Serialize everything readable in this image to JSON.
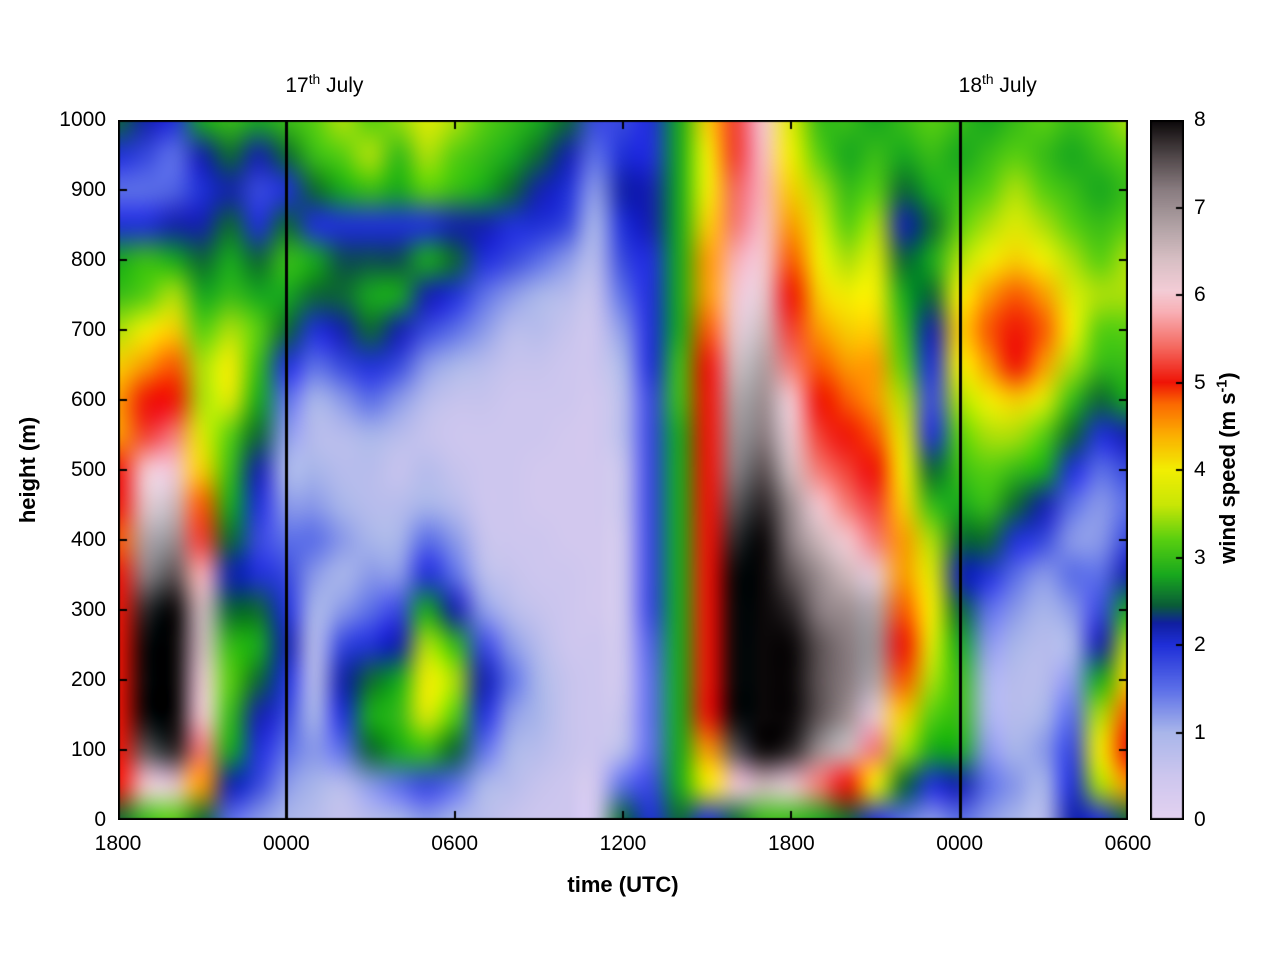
{
  "chart_data": {
    "type": "heatmap",
    "title": "",
    "xlabel": "time (UTC)",
    "ylabel": "height (m)",
    "x_range_hours": [
      0,
      36
    ],
    "y_range": [
      0,
      1000
    ],
    "c_range": [
      0,
      8
    ],
    "grid": false,
    "x_ticks": [
      {
        "label": "1800",
        "hour": 0
      },
      {
        "label": "0000",
        "hour": 6
      },
      {
        "label": "0600",
        "hour": 12
      },
      {
        "label": "1200",
        "hour": 18
      },
      {
        "label": "1800",
        "hour": 24
      },
      {
        "label": "0000",
        "hour": 30
      },
      {
        "label": "0600",
        "hour": 36
      }
    ],
    "y_ticks": [
      {
        "label": "0",
        "value": 0
      },
      {
        "label": "100",
        "value": 100
      },
      {
        "label": "200",
        "value": 200
      },
      {
        "label": "300",
        "value": 300
      },
      {
        "label": "400",
        "value": 400
      },
      {
        "label": "500",
        "value": 500
      },
      {
        "label": "600",
        "value": 600
      },
      {
        "label": "700",
        "value": 700
      },
      {
        "label": "800",
        "value": 800
      },
      {
        "label": "900",
        "value": 900
      },
      {
        "label": "1000",
        "value": 1000
      }
    ],
    "colorbar": {
      "label_pre": "wind speed (m s",
      "label_sup": "-1",
      "label_post": ")",
      "ticks": [
        {
          "label": "0",
          "value": 0
        },
        {
          "label": "1",
          "value": 1
        },
        {
          "label": "2",
          "value": 2
        },
        {
          "label": "3",
          "value": 3
        },
        {
          "label": "4",
          "value": 4
        },
        {
          "label": "5",
          "value": 5
        },
        {
          "label": "6",
          "value": 6
        },
        {
          "label": "7",
          "value": 7
        },
        {
          "label": "8",
          "value": 8
        }
      ],
      "position": "right"
    },
    "annotations": [
      {
        "day": "17",
        "ordinal": "th",
        "rest": " July",
        "hour": 6
      },
      {
        "day": "18",
        "ordinal": "th",
        "rest": " July",
        "hour": 30
      }
    ],
    "vlines_hours": [
      6,
      30
    ],
    "time_hours": [
      0,
      1,
      2,
      3,
      4,
      5,
      6,
      7,
      8,
      9,
      10,
      11,
      12,
      13,
      14,
      15,
      16,
      17,
      18,
      19,
      20,
      21,
      22,
      23,
      24,
      25,
      26,
      27,
      28,
      29,
      30,
      31,
      32,
      33,
      34,
      35,
      36
    ],
    "heights_m": [
      0,
      50,
      100,
      150,
      200,
      250,
      300,
      350,
      400,
      450,
      500,
      550,
      600,
      650,
      700,
      750,
      800,
      850,
      900,
      950,
      1000
    ],
    "values_units": "m s^-1",
    "values_columns": [
      [
        2.5,
        5,
        5,
        5,
        5,
        5,
        5,
        5,
        4.8,
        5,
        5,
        4.5,
        4.5,
        4.2,
        3.5,
        3,
        2.8,
        2,
        1.5,
        2,
        2.5
      ],
      [
        3,
        6,
        7.5,
        8,
        8,
        8,
        7.8,
        7.2,
        6.8,
        6.3,
        6,
        5.2,
        5,
        4.5,
        4,
        3.2,
        3,
        2,
        1.5,
        1.8,
        2.2
      ],
      [
        3.2,
        6.2,
        7.8,
        8,
        8,
        8,
        8,
        7.5,
        7,
        6.5,
        6,
        5.5,
        5,
        4.8,
        4.2,
        3.5,
        2.8,
        2.2,
        1.6,
        1.5,
        2
      ],
      [
        2.5,
        4.5,
        5.5,
        6,
        6.2,
        6.5,
        6.5,
        5.8,
        5.2,
        4.8,
        4.2,
        3.8,
        3.5,
        3.5,
        3.2,
        2.8,
        2.5,
        2.2,
        2,
        2.2,
        2.8
      ],
      [
        1.5,
        2.2,
        2.8,
        3,
        3.2,
        3,
        2.5,
        2.2,
        2.5,
        2.8,
        3,
        3.2,
        3.8,
        4,
        3.5,
        3,
        2.8,
        2.5,
        2.2,
        2.5,
        3
      ],
      [
        1.2,
        1.8,
        2,
        2.2,
        2.5,
        2.8,
        2.5,
        2,
        1.8,
        2,
        2.2,
        2.5,
        2.8,
        3,
        3.2,
        2.8,
        2.5,
        2,
        1.8,
        2.2,
        2.8
      ],
      [
        1,
        1.2,
        1.5,
        1.8,
        2,
        2.2,
        2,
        1.8,
        1.5,
        1.2,
        1,
        1.2,
        1.5,
        2,
        2.5,
        2.8,
        3,
        2.5,
        2,
        2.5,
        3
      ],
      [
        0.8,
        1,
        1.2,
        1,
        0.8,
        0.8,
        1,
        1.2,
        1.5,
        1.2,
        1,
        0.8,
        1,
        1.5,
        2,
        2.5,
        2.8,
        2,
        2.5,
        3,
        3.2
      ],
      [
        0.6,
        0.8,
        1.5,
        2,
        2.2,
        1.8,
        1.2,
        1,
        1.2,
        1,
        0.8,
        0.8,
        1.2,
        1.8,
        2.2,
        2.5,
        2.4,
        2,
        2.8,
        3.2,
        3.5
      ],
      [
        0.8,
        1.2,
        2.5,
        2.8,
        2.5,
        2,
        1.5,
        1.2,
        1,
        0.8,
        0.8,
        1,
        1.5,
        2,
        2.5,
        2.8,
        2.4,
        2,
        3,
        3.5,
        3.2
      ],
      [
        1,
        1.5,
        2.8,
        3,
        2.8,
        2.2,
        1.8,
        1.2,
        1,
        0.8,
        0.6,
        0.8,
        1.2,
        1.8,
        2.2,
        2.8,
        2.4,
        2,
        2.8,
        3,
        3.4
      ],
      [
        1.2,
        1.8,
        3,
        3.8,
        4,
        3.5,
        2.8,
        2,
        1.5,
        1,
        0.8,
        0.6,
        0.8,
        1.2,
        1.8,
        2.2,
        2.8,
        2,
        3.2,
        3.5,
        3.8
      ],
      [
        1,
        1.5,
        2.5,
        3.2,
        3.5,
        3,
        2.2,
        1.5,
        1.2,
        0.8,
        0.6,
        0.5,
        0.6,
        1,
        1.5,
        2,
        2.5,
        2.2,
        3,
        3.2,
        3.5
      ],
      [
        0.8,
        1,
        1.5,
        2,
        2.2,
        1.8,
        1.2,
        0.8,
        0.6,
        0.5,
        0.5,
        0.5,
        0.6,
        0.8,
        1.2,
        1.5,
        2,
        2.2,
        2.8,
        3,
        3.2
      ],
      [
        0.6,
        0.8,
        1,
        1.2,
        1.5,
        1.2,
        0.8,
        0.6,
        0.5,
        0.5,
        0.5,
        0.5,
        0.5,
        0.6,
        0.8,
        1.2,
        1.8,
        2,
        2.5,
        2.8,
        3
      ],
      [
        0.5,
        0.6,
        0.8,
        1,
        1,
        0.8,
        0.6,
        0.5,
        0.5,
        0.4,
        0.4,
        0.5,
        0.5,
        0.6,
        0.8,
        1,
        1.5,
        2,
        2.2,
        2.5,
        2.8
      ],
      [
        0.5,
        0.5,
        0.6,
        0.6,
        0.6,
        0.5,
        0.5,
        0.5,
        0.4,
        0.4,
        0.4,
        0.4,
        0.5,
        0.5,
        0.6,
        0.8,
        1.2,
        1.8,
        2,
        2.2,
        2.5
      ],
      [
        0.4,
        0.4,
        0.5,
        0.5,
        0.5,
        0.5,
        0.4,
        0.4,
        0.4,
        0.4,
        0.4,
        0.4,
        0.4,
        0.5,
        0.5,
        0.6,
        0.8,
        1,
        1.2,
        1.5,
        1.8
      ],
      [
        2.5,
        1.5,
        0.8,
        0.6,
        0.5,
        0.5,
        0.5,
        0.5,
        0.5,
        0.6,
        0.6,
        0.8,
        0.8,
        1,
        1.2,
        1.5,
        1.8,
        2,
        2.2,
        2,
        1.8
      ],
      [
        2,
        1.8,
        1.5,
        1.5,
        1.5,
        1.6,
        1.8,
        1.8,
        1.8,
        1.8,
        1.8,
        1.8,
        1.8,
        2,
        2,
        2,
        2,
        2.2,
        2.2,
        2,
        2
      ],
      [
        2.5,
        2.8,
        2.8,
        2.8,
        2.8,
        2.8,
        2.8,
        2.8,
        2.8,
        2.8,
        2.8,
        2.8,
        3,
        3,
        2.8,
        2.8,
        2.8,
        2.8,
        2.8,
        2.8,
        2.8
      ],
      [
        2,
        4,
        4.5,
        5,
        5,
        5,
        5,
        5,
        5,
        5,
        5,
        5,
        5,
        5,
        4.8,
        4.5,
        4.5,
        4.2,
        4,
        4,
        4.2
      ],
      [
        2.5,
        6,
        7.5,
        8,
        8,
        8,
        8,
        8,
        7.8,
        7.5,
        7.2,
        7,
        6.8,
        6.5,
        6.2,
        6,
        5.8,
        5.5,
        5.4,
        5.2,
        5.2
      ],
      [
        3,
        6.5,
        8,
        8,
        8,
        8,
        8,
        8,
        8,
        7.8,
        7.5,
        7.2,
        7,
        6.8,
        6.5,
        6.2,
        6,
        5.9,
        5.8,
        5.9,
        6
      ],
      [
        3,
        6.2,
        7.8,
        8,
        8,
        8,
        7.8,
        7.5,
        7.2,
        7,
        6.5,
        6.2,
        6,
        5.5,
        5.2,
        5,
        4.8,
        4.5,
        4.2,
        4,
        3.8
      ],
      [
        2.8,
        5.5,
        7,
        7.5,
        7.5,
        7.5,
        7.2,
        7,
        6.5,
        6,
        5.5,
        5.2,
        5,
        4.8,
        4.5,
        4.2,
        4,
        3.8,
        3.5,
        3.2,
        3
      ],
      [
        2.5,
        5,
        6.5,
        7,
        7.2,
        7.2,
        7,
        6.5,
        6,
        5.5,
        5.2,
        5,
        4.8,
        4.5,
        4.2,
        4,
        3.5,
        3.2,
        3,
        2.8,
        3
      ],
      [
        2,
        4,
        5.5,
        6.2,
        6.8,
        7,
        6.8,
        6.2,
        5.5,
        5.2,
        5,
        4.8,
        4.5,
        4.5,
        4.2,
        4,
        3.8,
        3.5,
        3.2,
        3,
        2.8
      ],
      [
        1.5,
        2.5,
        3.5,
        4.2,
        4.8,
        5,
        4.8,
        4.5,
        4.5,
        4.2,
        4,
        3.8,
        3.5,
        3.2,
        3,
        2.8,
        2.5,
        2.2,
        2.5,
        2.8,
        3
      ],
      [
        1.2,
        2,
        2.8,
        3.2,
        3.5,
        3.8,
        4,
        3.8,
        3.5,
        3,
        2.5,
        2,
        1.8,
        2,
        2.2,
        2.5,
        2.8,
        2.5,
        2.8,
        3,
        3.2
      ],
      [
        1.5,
        2.2,
        2.8,
        3,
        3,
        2.8,
        2.5,
        2.2,
        2.5,
        2.8,
        3,
        3.2,
        3.5,
        4,
        4.2,
        4,
        3.5,
        3.2,
        3,
        2.8,
        3
      ],
      [
        1.2,
        1.5,
        1.2,
        1,
        1,
        1.2,
        1.5,
        2,
        2.5,
        3,
        3.2,
        3.5,
        4,
        4.5,
        4.8,
        4.5,
        4,
        3.5,
        3.2,
        3,
        2.8
      ],
      [
        1,
        1.2,
        1,
        0.8,
        0.8,
        1,
        1.2,
        1.5,
        2,
        2.5,
        3,
        3.5,
        4.2,
        5,
        5,
        4.8,
        4.2,
        3.8,
        3.5,
        3.2,
        3
      ],
      [
        0.8,
        1,
        1.2,
        1,
        0.8,
        0.8,
        1,
        1.2,
        1.8,
        2.2,
        2.8,
        3.2,
        3.8,
        4.5,
        4.8,
        4.5,
        4,
        3.5,
        3.2,
        3,
        3.2
      ],
      [
        2.2,
        2,
        1.8,
        1.5,
        1.2,
        1,
        1.2,
        1.5,
        1.2,
        1.5,
        2,
        2.5,
        3,
        3.5,
        4,
        3.8,
        3.5,
        3.2,
        3,
        2.8,
        3
      ],
      [
        2,
        3.5,
        4,
        3.5,
        2.8,
        2.2,
        1.8,
        1.5,
        1.2,
        1.2,
        1.5,
        2,
        2.5,
        3,
        3.2,
        3.5,
        3.2,
        3,
        2.8,
        3,
        3.2
      ],
      [
        2.5,
        4.5,
        5,
        4.8,
        4.2,
        3.5,
        2.8,
        2.2,
        1.8,
        1.5,
        1.8,
        2.2,
        2.8,
        3,
        3.2,
        3.5,
        3.5,
        3.2,
        3,
        3.2,
        3.5
      ]
    ]
  },
  "colormap": {
    "stops": [
      [
        0.0,
        "#e4d2f0"
      ],
      [
        0.5,
        "#cdc6ee"
      ],
      [
        1.0,
        "#a9b6ea"
      ],
      [
        1.5,
        "#5b6ee8"
      ],
      [
        2.0,
        "#1f2fd8"
      ],
      [
        2.25,
        "#101fa0"
      ],
      [
        2.45,
        "#0a5c38"
      ],
      [
        2.8,
        "#18a81e"
      ],
      [
        3.2,
        "#58cf10"
      ],
      [
        3.6,
        "#c8e606"
      ],
      [
        4.0,
        "#f2ee02"
      ],
      [
        4.4,
        "#fbae01"
      ],
      [
        4.75,
        "#fb6a01"
      ],
      [
        5.0,
        "#ef1406"
      ],
      [
        5.4,
        "#f4685f"
      ],
      [
        5.8,
        "#f8afb4"
      ],
      [
        6.05,
        "#f3ccd6"
      ],
      [
        6.4,
        "#d8bfc4"
      ],
      [
        6.8,
        "#b0a1a4"
      ],
      [
        7.2,
        "#897c80"
      ],
      [
        7.6,
        "#4e4547"
      ],
      [
        8.0,
        "#0a0708"
      ]
    ]
  }
}
